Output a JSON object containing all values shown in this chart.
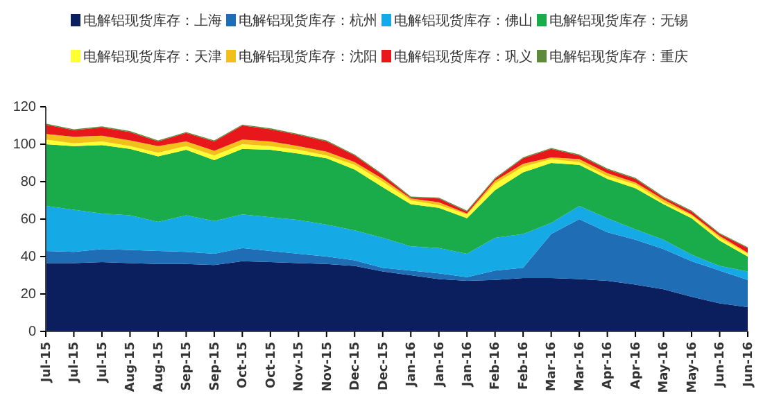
{
  "chart_data": {
    "type": "area",
    "stacked": true,
    "legend": "top",
    "grid": false,
    "categories": [
      "Jul-15",
      "Jul-15",
      "Jul-15",
      "Aug-15",
      "Aug-15",
      "Sep-15",
      "Sep-15",
      "Oct-15",
      "Oct-15",
      "Nov-15",
      "Nov-15",
      "Dec-15",
      "Dec-15",
      "Jan-16",
      "Jan-16",
      "Jan-16",
      "Feb-16",
      "Feb-16",
      "Mar-16",
      "Mar-16",
      "Apr-16",
      "Apr-16",
      "May-16",
      "May-16",
      "Jun-16",
      "Jun-16"
    ],
    "ylim": [
      0,
      120
    ],
    "yticks": [
      0,
      20,
      40,
      60,
      80,
      100,
      120
    ],
    "series": [
      {
        "name": "电解铝现货库存：上海",
        "color": "#0b1f5e",
        "values": [
          36.5,
          36.5,
          37,
          36.5,
          36,
          36,
          35.5,
          37.5,
          37,
          36.5,
          36,
          35,
          32,
          30,
          28,
          27,
          27.5,
          28.5,
          28.5,
          28,
          27,
          25,
          22.5,
          18.5,
          15,
          13
        ]
      },
      {
        "name": "电解铝现货库存：杭州",
        "color": "#1f6db5",
        "values": [
          6.5,
          6,
          7,
          7,
          7,
          6.5,
          6,
          7,
          6,
          5,
          4,
          3,
          2,
          2.5,
          3,
          2,
          5,
          5.5,
          23.5,
          32,
          26,
          24,
          21.5,
          19,
          17.5,
          14.5
        ]
      },
      {
        "name": "电解铝现货库存：佛山",
        "color": "#15a9e6",
        "values": [
          24,
          22.5,
          19,
          18.5,
          15.5,
          19.5,
          17.5,
          18,
          18,
          18,
          17,
          16,
          16,
          13,
          13.5,
          12.5,
          17.5,
          18,
          6,
          7,
          7.5,
          5.5,
          5,
          3.5,
          2.5,
          4.5
        ]
      },
      {
        "name": "电解铝现货库存：无锡",
        "color": "#1aab4b",
        "values": [
          33,
          34,
          36.5,
          35.5,
          35,
          35,
          32.5,
          35,
          36,
          35.5,
          35.5,
          32.5,
          27,
          22.5,
          21.5,
          19,
          25.5,
          33,
          32,
          22,
          21,
          22,
          19,
          19.5,
          13.5,
          8
        ]
      },
      {
        "name": "电解铝现货库存：天津",
        "color": "#ffff33",
        "values": [
          2.5,
          1.5,
          2,
          1.5,
          2,
          2,
          2.5,
          2.5,
          2,
          2,
          1.5,
          2.5,
          3,
          2,
          1.5,
          2,
          3.5,
          3,
          2,
          1.5,
          1.5,
          2,
          1,
          1.5,
          1.5,
          1.5
        ]
      },
      {
        "name": "电解铝现货库存：沈阳",
        "color": "#f2c01a",
        "values": [
          3,
          3.5,
          3,
          3,
          3.5,
          2.5,
          2.5,
          2.5,
          2.5,
          2,
          2,
          1.5,
          1.5,
          1,
          1.5,
          0.5,
          1.5,
          1.5,
          1,
          1.5,
          1.5,
          1,
          1.5,
          0.5,
          1,
          0.5
        ]
      },
      {
        "name": "电解铝现货库存：巩义",
        "color": "#e8171b",
        "values": [
          5,
          3.5,
          4.5,
          4.5,
          2.5,
          4.5,
          5,
          7.5,
          6.5,
          6,
          5.5,
          3.5,
          2,
          0.5,
          2,
          1,
          1,
          3,
          4.5,
          2,
          2,
          2,
          1,
          1.5,
          1,
          2.5
        ]
      },
      {
        "name": "电解铝现货库存：重庆",
        "color": "#5d8b3b",
        "values": [
          0.5,
          0.5,
          0.5,
          0.5,
          0.5,
          0.5,
          0.5,
          0.5,
          0.5,
          0.5,
          0.5,
          0.5,
          0.5,
          0.5,
          0.5,
          0.5,
          0.5,
          0.5,
          0.5,
          0.5,
          0.5,
          0.5,
          0.5,
          0.5,
          0.5,
          0.5
        ]
      }
    ]
  }
}
